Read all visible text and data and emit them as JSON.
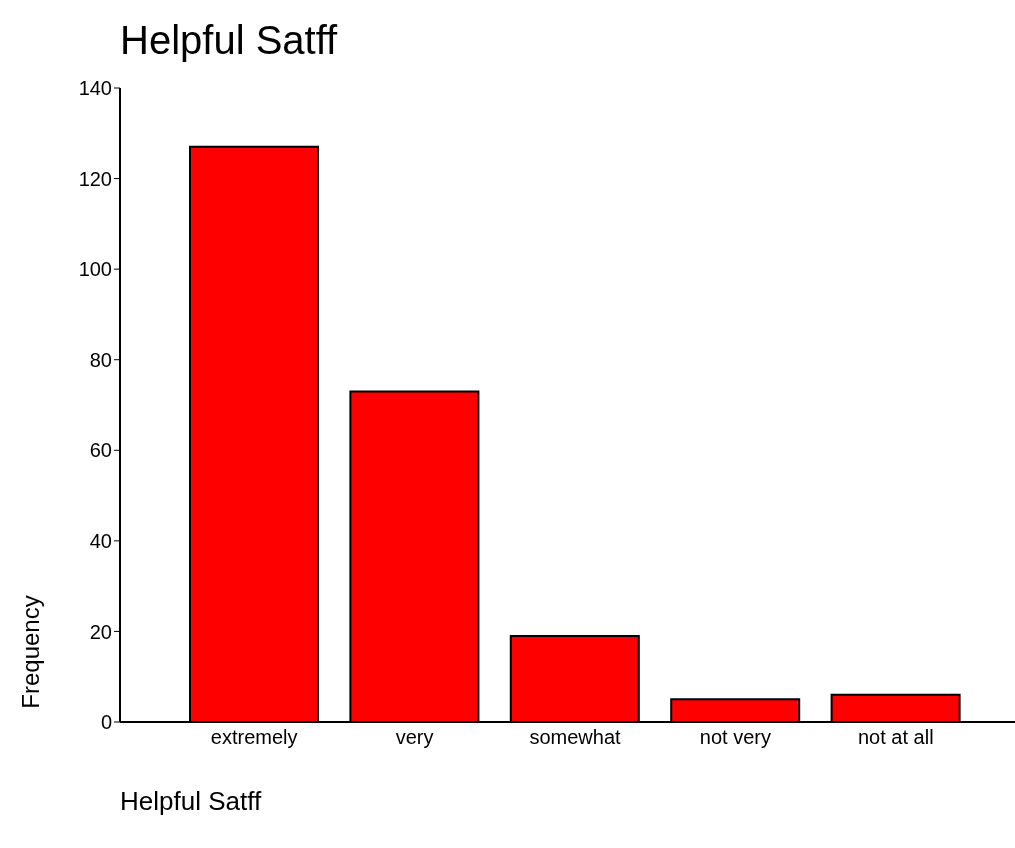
{
  "chart_data": {
    "type": "bar",
    "title": "Helpful Satff",
    "xlabel": "Helpful Satff",
    "ylabel": "Frequency",
    "categories": [
      "extremely",
      "very",
      "somewhat",
      "not very",
      "not at all"
    ],
    "values": [
      127,
      73,
      19,
      5,
      6
    ],
    "color": "#ff0000",
    "ylim": [
      0,
      140
    ],
    "yticks": [
      0,
      20,
      40,
      60,
      80,
      100,
      120,
      140
    ],
    "grid": false
  }
}
